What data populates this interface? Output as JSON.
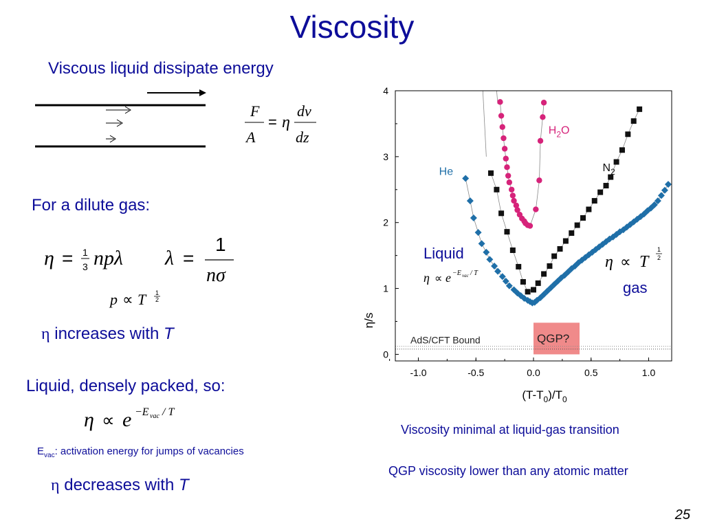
{
  "slide": {
    "title": "Viscosity",
    "subtitle": "Viscous liquid dissipate energy",
    "dilute_gas": "For a dilute gas:",
    "eta_symbol": "η",
    "increases_text": " increases with ",
    "T": "T",
    "liquid_dense": "Liquid, densely packed, so:",
    "evac_E": "E",
    "evac_sub": "vac",
    "evac_desc": ": activation energy for jumps of vacancies",
    "decreases_text": " decreases with ",
    "note1": "Viscosity minimal at liquid-gas transition",
    "note2": "QGP viscosity lower than any atomic matter",
    "page_number": "25"
  },
  "equations": {
    "force": "F / A = η dv / dz",
    "mean_free_path_eta": "η = 1/3 n p λ",
    "lambda": "λ = 1 / (n σ)",
    "p_prop": "p ∝ T^(1/2)",
    "liquid_eta": "η ∝ e^(−E_vac / T)"
  },
  "colors": {
    "text_blue": "#0d0d99",
    "helium": "#1f6fa8",
    "nitrogen": "#111111",
    "water": "#d6237a",
    "qgp_box": "#f08a8a"
  },
  "chart_data": {
    "type": "scatter",
    "xlabel": "(T-T0)/T0",
    "ylabel": "η/s",
    "xlim": [
      -1.2,
      1.2
    ],
    "ylim": [
      -0.1,
      4.0
    ],
    "xticks": [
      "-1.0",
      "-0.5",
      "0.0",
      "0.5",
      "1.0"
    ],
    "xtick_values": [
      -1.0,
      -0.5,
      0.0,
      0.5,
      1.0
    ],
    "yticks": [
      "0",
      "1",
      "2",
      "3",
      "4"
    ],
    "ytick_values": [
      0,
      1,
      2,
      3,
      4
    ],
    "series": [
      {
        "name": "He",
        "color": "#1f6fa8",
        "marker": "diamond",
        "label_pos": [
          -0.82,
          2.72
        ],
        "x": [
          -0.59,
          -0.55,
          -0.52,
          -0.48,
          -0.45,
          -0.41,
          -0.38,
          -0.34,
          -0.31,
          -0.27,
          -0.24,
          -0.21,
          -0.17,
          -0.14,
          -0.11,
          -0.08,
          -0.05,
          -0.03,
          -0.01,
          0.01,
          0.03,
          0.06,
          0.09,
          0.12,
          0.15,
          0.18,
          0.21,
          0.24,
          0.27,
          0.3,
          0.33,
          0.36,
          0.39,
          0.42,
          0.45,
          0.48,
          0.51,
          0.54,
          0.57,
          0.6,
          0.63,
          0.66,
          0.69,
          0.72,
          0.75,
          0.78,
          0.81,
          0.84,
          0.87,
          0.9,
          0.93,
          0.96,
          0.99,
          1.02,
          1.05,
          1.08,
          1.11,
          1.14,
          1.17
        ],
        "y": [
          2.67,
          2.33,
          2.07,
          1.85,
          1.68,
          1.55,
          1.44,
          1.34,
          1.26,
          1.18,
          1.11,
          1.04,
          0.98,
          0.93,
          0.89,
          0.85,
          0.82,
          0.8,
          0.78,
          0.79,
          0.82,
          0.86,
          0.91,
          0.96,
          1.01,
          1.06,
          1.11,
          1.16,
          1.2,
          1.25,
          1.3,
          1.34,
          1.39,
          1.43,
          1.47,
          1.51,
          1.55,
          1.59,
          1.63,
          1.67,
          1.71,
          1.75,
          1.78,
          1.82,
          1.86,
          1.89,
          1.93,
          1.97,
          2.01,
          2.05,
          2.09,
          2.13,
          2.18,
          2.22,
          2.27,
          2.33,
          2.41,
          2.49,
          2.58
        ]
      },
      {
        "name": "N2",
        "color": "#111111",
        "marker": "square",
        "label_pos": [
          0.6,
          2.78
        ],
        "x": [
          -0.37,
          -0.32,
          -0.28,
          -0.23,
          -0.18,
          -0.13,
          -0.09,
          -0.05,
          0.0,
          0.04,
          0.09,
          0.14,
          0.18,
          0.23,
          0.28,
          0.33,
          0.38,
          0.43,
          0.48,
          0.53,
          0.58,
          0.63,
          0.67,
          0.72,
          0.77,
          0.82,
          0.87,
          0.92
        ],
        "y": [
          2.75,
          2.5,
          2.14,
          1.86,
          1.58,
          1.33,
          1.1,
          0.95,
          0.98,
          1.08,
          1.22,
          1.34,
          1.49,
          1.6,
          1.72,
          1.84,
          1.96,
          2.07,
          2.2,
          2.33,
          2.46,
          2.56,
          2.69,
          2.92,
          3.1,
          3.34,
          3.54,
          3.72
        ]
      },
      {
        "name": "H2O",
        "color": "#d6237a",
        "marker": "circle",
        "label_pos": [
          0.13,
          3.35
        ],
        "x": [
          -0.29,
          -0.28,
          -0.27,
          -0.26,
          -0.25,
          -0.24,
          -0.23,
          -0.22,
          -0.21,
          -0.19,
          -0.18,
          -0.17,
          -0.15,
          -0.14,
          -0.12,
          -0.1,
          -0.08,
          -0.07,
          -0.05,
          -0.03,
          0.02,
          0.05,
          0.06,
          0.08,
          0.09
        ],
        "y": [
          3.83,
          3.62,
          3.45,
          3.28,
          3.12,
          2.97,
          2.84,
          2.71,
          2.61,
          2.5,
          2.41,
          2.33,
          2.26,
          2.19,
          2.12,
          2.06,
          2.02,
          1.99,
          1.96,
          1.95,
          2.2,
          2.64,
          3.24,
          3.6,
          3.82
        ]
      }
    ],
    "annotations": {
      "adscft": "AdS/CFT Bound",
      "adscft_y": 0.08,
      "qgp": "QGP?",
      "qgp_x": [
        0.0,
        0.4
      ],
      "qgp_y": [
        0.0,
        0.48
      ],
      "liquid": "Liquid",
      "liquid_formula": "η ∝ e^(−E_vac / T)",
      "gas_formula": "η ∝ T^(1/2)",
      "gas": "gas"
    }
  }
}
